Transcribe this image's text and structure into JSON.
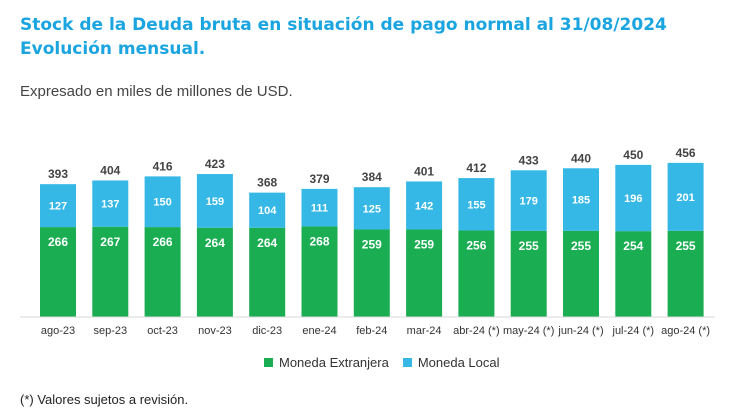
{
  "title_line1": "Stock de la Deuda bruta en situación de pago normal al 31/08/2024",
  "title_line2": "Evolución mensual.",
  "subtitle": "Expresado en miles de millones de USD.",
  "footnote": "(*) Valores sujetos a revisión.",
  "colors": {
    "foreign": "#1aad52",
    "local": "#35b8e6",
    "title": "#1ba5e0"
  },
  "chart_data": {
    "type": "bar",
    "stacked": true,
    "categories": [
      "ago-23",
      "sep-23",
      "oct-23",
      "nov-23",
      "dic-23",
      "ene-24",
      "feb-24",
      "mar-24",
      "abr-24 (*)",
      "may-24 (*)",
      "jun-24 (*)",
      "jul-24 (*)",
      "ago-24 (*)"
    ],
    "series": [
      {
        "name": "Moneda Extranjera",
        "values": [
          266,
          267,
          266,
          264,
          264,
          268,
          259,
          259,
          256,
          255,
          255,
          254,
          255
        ]
      },
      {
        "name": "Moneda Local",
        "values": [
          127,
          137,
          150,
          159,
          104,
          111,
          125,
          142,
          155,
          179,
          185,
          196,
          201
        ]
      }
    ],
    "totals": [
      393,
      404,
      416,
      423,
      368,
      379,
      384,
      401,
      412,
      433,
      440,
      450,
      456
    ],
    "ylim": [
      0,
      500
    ],
    "grid": false,
    "legend": "bottom"
  }
}
